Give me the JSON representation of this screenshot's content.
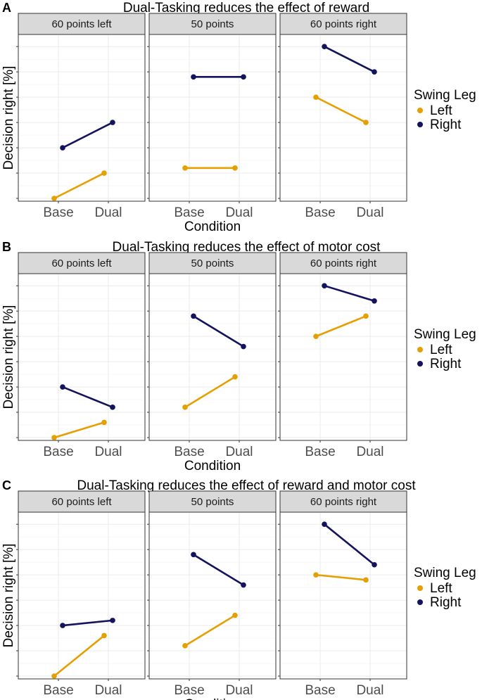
{
  "chart_data": [
    {
      "type": "line",
      "panel_label": "A",
      "title": "Dual-Tasking reduces the effect of reward",
      "xlabel": "Condition",
      "ylabel": "Decision right [%]",
      "x_categories": [
        "Base",
        "Dual"
      ],
      "y_tick_labels_visible": false,
      "ylim": [
        0,
        6.2
      ],
      "facets": [
        {
          "label": "60 points left",
          "series": [
            {
              "name": "Left",
              "values": [
                0,
                1
              ]
            },
            {
              "name": "Right",
              "values": [
                2,
                3
              ]
            }
          ]
        },
        {
          "label": "50 points",
          "series": [
            {
              "name": "Left",
              "values": [
                1.2,
                1.2
              ]
            },
            {
              "name": "Right",
              "values": [
                4.8,
                4.8
              ]
            }
          ]
        },
        {
          "label": "60 points right",
          "series": [
            {
              "name": "Left",
              "values": [
                4,
                3
              ]
            },
            {
              "name": "Right",
              "values": [
                6,
                5
              ]
            }
          ]
        }
      ],
      "legend": {
        "title": "Swing Leg",
        "position": "right"
      }
    },
    {
      "type": "line",
      "panel_label": "B",
      "title": "Dual-Tasking reduces the effect of motor cost",
      "xlabel": "Condition",
      "ylabel": "Decision right [%]",
      "x_categories": [
        "Base",
        "Dual"
      ],
      "y_tick_labels_visible": false,
      "ylim": [
        0,
        6.2
      ],
      "facets": [
        {
          "label": "60 points left",
          "series": [
            {
              "name": "Left",
              "values": [
                0,
                0.6
              ]
            },
            {
              "name": "Right",
              "values": [
                2,
                1.2
              ]
            }
          ]
        },
        {
          "label": "50 points",
          "series": [
            {
              "name": "Left",
              "values": [
                1.2,
                2.4
              ]
            },
            {
              "name": "Right",
              "values": [
                4.8,
                3.6
              ]
            }
          ]
        },
        {
          "label": "60 points right",
          "series": [
            {
              "name": "Left",
              "values": [
                4,
                4.8
              ]
            },
            {
              "name": "Right",
              "values": [
                6,
                5.4
              ]
            }
          ]
        }
      ],
      "legend": {
        "title": "Swing Leg",
        "position": "right"
      }
    },
    {
      "type": "line",
      "panel_label": "C",
      "title": "Dual-Tasking reduces the effect of reward and motor cost",
      "xlabel": "Condition",
      "ylabel": "Decision right [%]",
      "x_categories": [
        "Base",
        "Dual"
      ],
      "y_tick_labels_visible": false,
      "ylim": [
        0,
        6.2
      ],
      "facets": [
        {
          "label": "60 points left",
          "series": [
            {
              "name": "Left",
              "values": [
                0,
                1.6
              ]
            },
            {
              "name": "Right",
              "values": [
                2,
                2.2
              ]
            }
          ]
        },
        {
          "label": "50 points",
          "series": [
            {
              "name": "Left",
              "values": [
                1.2,
                2.4
              ]
            },
            {
              "name": "Right",
              "values": [
                4.8,
                3.6
              ]
            }
          ]
        },
        {
          "label": "60 points right",
          "series": [
            {
              "name": "Left",
              "values": [
                4,
                3.8
              ]
            },
            {
              "name": "Right",
              "values": [
                6,
                4.4
              ]
            }
          ]
        }
      ],
      "legend": {
        "title": "Swing Leg",
        "position": "right"
      }
    }
  ],
  "series_colors": {
    "Left": "#E69F00",
    "Right": "#14135E"
  }
}
